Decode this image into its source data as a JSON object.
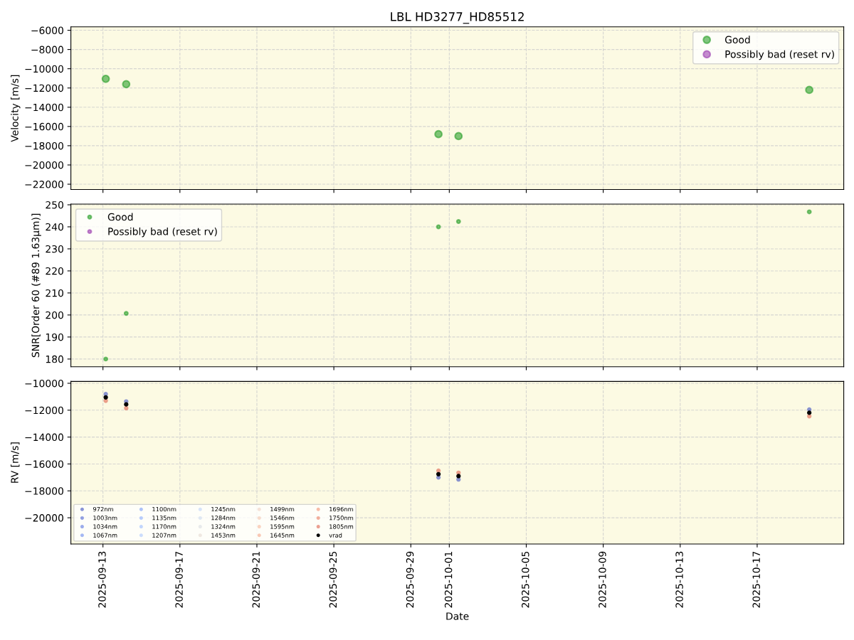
{
  "chart_data": [
    {
      "type": "scatter",
      "title": "LBL HD3277_HD85512",
      "ylabel": "Velocity [m/s]",
      "xlim": [
        "2025-09-11T08:00",
        "2025-10-21T12:00"
      ],
      "xticks": [
        "2025-09-13",
        "2025-09-17",
        "2025-09-21",
        "2025-09-25",
        "2025-09-29",
        "2025-10-01",
        "2025-10-05",
        "2025-10-09",
        "2025-10-13",
        "2025-10-17"
      ],
      "ylim": [
        -22550,
        -5650
      ],
      "yticks": [
        -22000,
        -20000,
        -18000,
        -16000,
        -14000,
        -12000,
        -10000,
        -8000,
        -6000
      ],
      "tick_labels": "y",
      "grid": true,
      "legend": "top right",
      "marker": "circle",
      "x": [
        "2025-09-13T03:30",
        "2025-09-14T05:00",
        "2025-09-30T10:30",
        "2025-10-01T11:30",
        "2025-10-19T17:00"
      ],
      "series": [
        {
          "name": "Good",
          "color": "#2ca02c",
          "values": [
            -11050,
            -11600,
            -16800,
            -17000,
            -12200
          ]
        },
        {
          "name": "Possibly bad (reset rv)",
          "color": "#9d3fb0",
          "values": [
            null,
            null,
            null,
            null,
            null
          ]
        }
      ]
    },
    {
      "type": "scatter",
      "ylabel": "SNR[Order 60 (#89 1.63μm)]",
      "xlim": [
        "2025-09-11T08:00",
        "2025-10-21T12:00"
      ],
      "xticks": [
        "2025-09-13",
        "2025-09-17",
        "2025-09-21",
        "2025-09-25",
        "2025-09-29",
        "2025-10-01",
        "2025-10-05",
        "2025-10-09",
        "2025-10-13",
        "2025-10-17"
      ],
      "ylim": [
        176.5,
        250.3
      ],
      "yticks": [
        180,
        190,
        200,
        210,
        220,
        230,
        240,
        250
      ],
      "tick_labels": "y",
      "grid": true,
      "legend": "top left",
      "marker": "circle",
      "x": [
        "2025-09-13T03:30",
        "2025-09-14T05:00",
        "2025-09-30T10:30",
        "2025-10-01T11:30",
        "2025-10-19T17:00"
      ],
      "series": [
        {
          "name": "Good",
          "color": "#2ca02c",
          "values": [
            180,
            200.7,
            240,
            242.4,
            246.8
          ]
        },
        {
          "name": "Possibly bad (reset rv)",
          "color": "#9d3fb0",
          "values": [
            null,
            null,
            null,
            null,
            null
          ]
        }
      ]
    },
    {
      "type": "scatter",
      "xlabel": "Date",
      "ylabel": "RV [m/s]",
      "xlim": [
        "2025-09-11T08:00",
        "2025-10-21T12:00"
      ],
      "xticks": [
        "2025-09-13",
        "2025-09-17",
        "2025-09-21",
        "2025-09-25",
        "2025-09-29",
        "2025-10-01",
        "2025-10-05",
        "2025-10-09",
        "2025-10-13",
        "2025-10-17"
      ],
      "ylim": [
        -21950,
        -9860
      ],
      "yticks": [
        -20000,
        -18000,
        -16000,
        -14000,
        -12000,
        -10000
      ],
      "grid": true,
      "legend": "bottom left",
      "marker": "circle",
      "x": [
        "2025-09-13T03:30",
        "2025-09-14T05:00",
        "2025-09-30T10:30",
        "2025-10-01T11:30",
        "2025-10-19T17:00"
      ],
      "series": [
        {
          "name": "972nm",
          "color": "#3b4cc0",
          "values": [
            -10800,
            -11350,
            -17000,
            -17150,
            -11950
          ]
        },
        {
          "name": "1003nm",
          "color": "#4961d2",
          "values": [
            null,
            null,
            null,
            null,
            null
          ]
        },
        {
          "name": "1034nm",
          "color": "#5875e1",
          "values": [
            null,
            null,
            null,
            null,
            null
          ]
        },
        {
          "name": "1067nm",
          "color": "#6788ee",
          "values": [
            null,
            null,
            null,
            null,
            null
          ]
        },
        {
          "name": "1100nm",
          "color": "#779af7",
          "values": [
            null,
            null,
            null,
            null,
            null
          ]
        },
        {
          "name": "1135nm",
          "color": "#88abfd",
          "values": [
            null,
            null,
            null,
            null,
            null
          ]
        },
        {
          "name": "1170nm",
          "color": "#9abbff",
          "values": [
            null,
            null,
            null,
            null,
            null
          ]
        },
        {
          "name": "1207nm",
          "color": "#aac7fd",
          "values": [
            null,
            null,
            null,
            null,
            null
          ]
        },
        {
          "name": "1245nm",
          "color": "#bbd1f8",
          "values": [
            null,
            null,
            null,
            null,
            null
          ]
        },
        {
          "name": "1284nm",
          "color": "#cad8ef",
          "values": [
            null,
            null,
            null,
            null,
            null
          ]
        },
        {
          "name": "1324nm",
          "color": "#d9dce1",
          "values": [
            null,
            null,
            null,
            null,
            null
          ]
        },
        {
          "name": "1453nm",
          "color": "#e5d8d1",
          "values": [
            null,
            null,
            null,
            null,
            null
          ]
        },
        {
          "name": "1499nm",
          "color": "#eecfbf",
          "values": [
            null,
            null,
            null,
            null,
            null
          ]
        },
        {
          "name": "1546nm",
          "color": "#f4c4ad",
          "values": [
            null,
            null,
            null,
            null,
            null
          ]
        },
        {
          "name": "1595nm",
          "color": "#f6b69a",
          "values": [
            null,
            null,
            null,
            null,
            null
          ]
        },
        {
          "name": "1645nm",
          "color": "#f5a486",
          "values": [
            null,
            null,
            null,
            null,
            null
          ]
        },
        {
          "name": "1696nm",
          "color": "#f29072",
          "values": [
            null,
            null,
            null,
            null,
            null
          ]
        },
        {
          "name": "1750nm",
          "color": "#e97a5f",
          "values": [
            null,
            null,
            null,
            null,
            null
          ]
        },
        {
          "name": "1805nm",
          "color": "#de614d",
          "values": [
            -11300,
            -11850,
            -16500,
            -16650,
            -12450
          ]
        },
        {
          "name": "vrad",
          "color": "#000000",
          "values": [
            -11050,
            -11570,
            -16760,
            -16900,
            -12190
          ]
        }
      ]
    }
  ]
}
